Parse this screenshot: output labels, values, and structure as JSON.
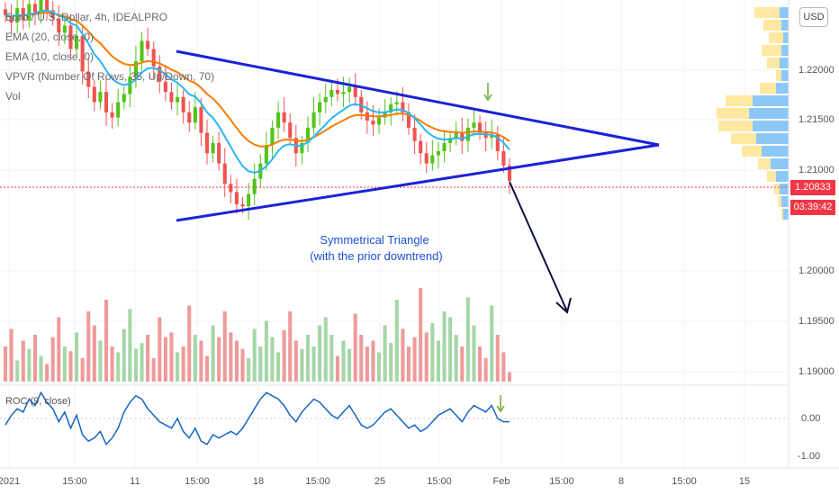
{
  "legend": {
    "symbol": "Euro / U.S. Dollar, 4h, IDEALPRO",
    "ema20": "EMA (20, close, 0)",
    "ema10": "EMA (10, close, 0)",
    "vpvr": "VPVR (Number Of Rows, 35, Up/Down, 70)",
    "vol": "Vol",
    "roc": "ROC (9, close)"
  },
  "currency_button": "USD",
  "last_price": "1.20833",
  "countdown": "03:39:42",
  "colors": {
    "up": "#26a69a",
    "up_light": "#52c41a",
    "down": "#ef5350",
    "ema20": "#f57c00",
    "ema10": "#29b6f6",
    "triangle": "#1a22d6",
    "arrow": "#0d1040",
    "last_price_bg": "#f23645",
    "vpvr_up": "#64b5f6",
    "vpvr_down": "#ffe082",
    "roc_line": "#1565c0"
  },
  "annotation": {
    "line1": "Symmetrical Triangle",
    "line2": "(with the prior downtrend)"
  },
  "chart_data": {
    "type": "candlestick",
    "title": "Euro / U.S. Dollar, 4h",
    "y_ticks": [
      "1.22000",
      "1.21500",
      "1.21000",
      "1.20000",
      "1.19500",
      "1.19000"
    ],
    "roc_ticks": [
      "0.00",
      "-1.00"
    ],
    "x_ticks": [
      "2021",
      "15:00",
      "11",
      "15:00",
      "18",
      "15:00",
      "25",
      "15:00",
      "Feb",
      "15:00",
      "8",
      "15:00",
      "15"
    ],
    "ylim": [
      1.189,
      1.226
    ],
    "price_series": [
      1.2245,
      1.2238,
      1.2252,
      1.224,
      1.2256,
      1.2248,
      1.2262,
      1.225,
      1.2242,
      1.2228,
      1.2235,
      1.2212,
      1.2225,
      1.219,
      1.2175,
      1.216,
      1.217,
      1.215,
      1.2145,
      1.216,
      1.2168,
      1.2185,
      1.22,
      1.222,
      1.2212,
      1.2195,
      1.218,
      1.217,
      1.216,
      1.2165,
      1.215,
      1.214,
      1.2155,
      1.213,
      1.211,
      1.212,
      1.21,
      1.208,
      1.2072,
      1.206,
      1.2058,
      1.207,
      1.2085,
      1.21,
      1.2118,
      1.2135,
      1.215,
      1.214,
      1.2125,
      1.211,
      1.212,
      1.2135,
      1.215,
      1.216,
      1.2165,
      1.2172,
      1.2168,
      1.217,
      1.2175,
      1.2165,
      1.215,
      1.2142,
      1.2138,
      1.2145,
      1.215,
      1.2158,
      1.216,
      1.215,
      1.2135,
      1.2122,
      1.211,
      1.21,
      1.2108,
      1.2112,
      1.212,
      1.2125,
      1.213,
      1.2122,
      1.2135,
      1.214,
      1.213,
      1.2125,
      1.2128,
      1.2112,
      1.2098,
      1.2083
    ],
    "volume": [
      30,
      45,
      18,
      35,
      28,
      40,
      22,
      15,
      38,
      55,
      30,
      26,
      42,
      20,
      60,
      48,
      35,
      70,
      30,
      25,
      45,
      62,
      28,
      33,
      40,
      20,
      55,
      38,
      42,
      25,
      30,
      65,
      40,
      35,
      22,
      48,
      38,
      60,
      42,
      35,
      28,
      20,
      45,
      30,
      52,
      38,
      25,
      44,
      60,
      35,
      28,
      40,
      30,
      48,
      55,
      40,
      22,
      35,
      28,
      58,
      40,
      30,
      35,
      25,
      48,
      33,
      70,
      45,
      30,
      38,
      80,
      42,
      50,
      35,
      60,
      55,
      40,
      30,
      72,
      48,
      30,
      20,
      65,
      40,
      25,
      8
    ],
    "roc": [
      -0.2,
      0.1,
      0.3,
      0.2,
      0.6,
      0.4,
      0.8,
      0.5,
      0.3,
      -0.1,
      0.2,
      -0.3,
      0.1,
      -0.5,
      -0.7,
      -0.6,
      -0.4,
      -0.8,
      -0.6,
      -0.3,
      0.2,
      0.5,
      0.7,
      0.6,
      0.3,
      0.1,
      -0.1,
      -0.2,
      -0.3,
      0.0,
      -0.4,
      -0.6,
      -0.3,
      -0.7,
      -0.8,
      -0.5,
      -0.6,
      -0.5,
      -0.4,
      -0.5,
      -0.3,
      0.0,
      0.3,
      0.6,
      0.8,
      0.7,
      0.6,
      0.4,
      0.1,
      -0.1,
      0.2,
      0.4,
      0.6,
      0.5,
      0.3,
      0.1,
      0.0,
      0.2,
      0.4,
      0.1,
      -0.2,
      -0.3,
      -0.2,
      0.0,
      0.2,
      0.3,
      0.1,
      -0.1,
      -0.3,
      -0.2,
      -0.4,
      -0.3,
      -0.1,
      0.1,
      0.2,
      0.3,
      0.1,
      -0.1,
      0.2,
      0.4,
      0.3,
      0.2,
      0.4,
      0.0,
      -0.1,
      -0.1
    ]
  }
}
